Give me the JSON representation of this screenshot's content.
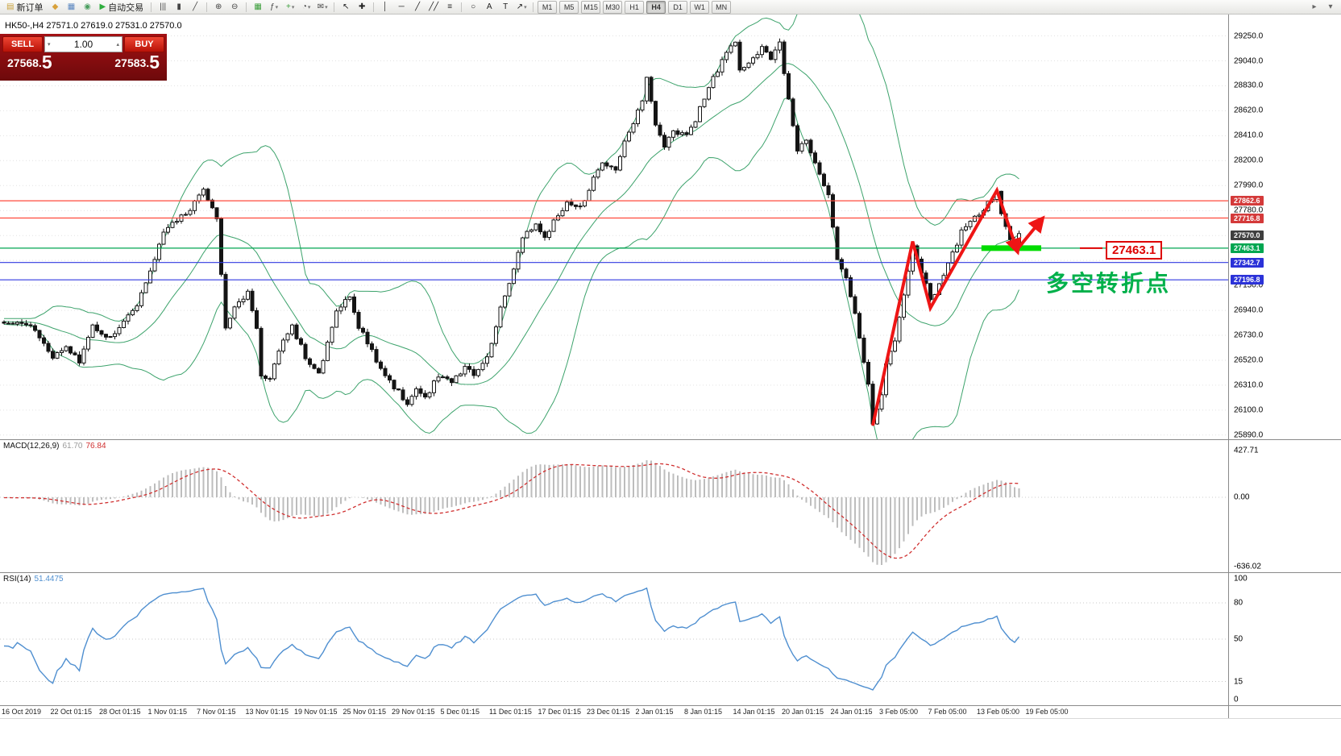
{
  "toolbar": {
    "timeframes": [
      "M1",
      "M5",
      "M15",
      "M30",
      "H1",
      "H4",
      "D1",
      "W1",
      "MN"
    ],
    "active_timeframe": "H4",
    "items": [
      {
        "k": "btn",
        "name": "new-order-button",
        "glyph": "▤",
        "gc": "#caa23a",
        "label": "新订单"
      },
      {
        "k": "icon",
        "name": "open-data-icon",
        "glyph": "◆",
        "gc": "#d8a13a"
      },
      {
        "k": "icon",
        "name": "charts-list-icon",
        "glyph": "▦",
        "gc": "#5a86c0"
      },
      {
        "k": "icon",
        "name": "help-icon",
        "glyph": "◉",
        "gc": "#4a9e5f"
      },
      {
        "k": "btn",
        "name": "autotrading-button",
        "glyph": "▶",
        "gc": "#2fae3e",
        "label": "自动交易"
      },
      {
        "k": "sep"
      },
      {
        "k": "icon",
        "name": "bar-chart-icon",
        "glyph": "|||",
        "gc": "#444"
      },
      {
        "k": "icon",
        "name": "candlestick-chart-icon",
        "glyph": "▮",
        "gc": "#444"
      },
      {
        "k": "icon",
        "name": "line-chart-icon",
        "glyph": "╱",
        "gc": "#444"
      },
      {
        "k": "sep"
      },
      {
        "k": "icon",
        "name": "zoom-in-icon",
        "glyph": "⊕",
        "gc": "#444"
      },
      {
        "k": "icon",
        "name": "zoom-out-icon",
        "glyph": "⊖",
        "gc": "#444"
      },
      {
        "k": "sep"
      },
      {
        "k": "icon",
        "name": "tile-windows-icon",
        "glyph": "▦",
        "gc": "#3a9e3a"
      },
      {
        "k": "dd",
        "name": "indicators-menu",
        "glyph": "ƒ",
        "gc": "#444"
      },
      {
        "k": "dd",
        "name": "add-object-menu",
        "glyph": "+",
        "gc": "#3a9e3a"
      },
      {
        "k": "dd",
        "name": "period-menu",
        "glyph": "◔",
        "gc": "#444"
      },
      {
        "k": "dd",
        "name": "template-menu",
        "glyph": "✉",
        "gc": "#444"
      },
      {
        "k": "sep"
      },
      {
        "k": "icon",
        "name": "cursor-icon",
        "glyph": "↖",
        "gc": "#222"
      },
      {
        "k": "icon",
        "name": "crosshair-icon",
        "glyph": "✚",
        "gc": "#222"
      },
      {
        "k": "sep"
      },
      {
        "k": "icon",
        "name": "vertical-line-icon",
        "glyph": "│",
        "gc": "#222"
      },
      {
        "k": "icon",
        "name": "horizontal-line-icon",
        "glyph": "─",
        "gc": "#222"
      },
      {
        "k": "icon",
        "name": "trendline-icon",
        "glyph": "╱",
        "gc": "#222"
      },
      {
        "k": "icon",
        "name": "channel-icon",
        "glyph": "╱╱",
        "gc": "#222"
      },
      {
        "k": "icon",
        "name": "fibonacci-icon",
        "glyph": "≡",
        "gc": "#222"
      },
      {
        "k": "sep"
      },
      {
        "k": "icon",
        "name": "shapes-icon",
        "glyph": "○",
        "gc": "#222"
      },
      {
        "k": "icon",
        "name": "text-icon",
        "glyph": "A",
        "gc": "#222"
      },
      {
        "k": "icon",
        "name": "label-icon",
        "glyph": "T",
        "gc": "#222"
      },
      {
        "k": "dd",
        "name": "arrows-menu",
        "glyph": "↗",
        "gc": "#222"
      },
      {
        "k": "sep"
      },
      {
        "k": "tf"
      },
      {
        "k": "flex"
      },
      {
        "k": "icon",
        "name": "dock-icon",
        "glyph": "▸",
        "gc": "#666"
      },
      {
        "k": "icon",
        "name": "panel-icon",
        "glyph": "▾",
        "gc": "#666"
      }
    ]
  },
  "quote_panel": {
    "sell_label": "SELL",
    "buy_label": "BUY",
    "volume": "1.00",
    "spinner_down": "▾",
    "spinner_up": "▴",
    "sell_price_main": "27568.",
    "sell_price_big": "5",
    "buy_price_main": "27583.",
    "buy_price_big": "5"
  },
  "chart_header": {
    "title": "HK50-,H4 27571.0 27619.0 27531.0 27570.0"
  },
  "annotations": {
    "price_label": "27463.1",
    "turning_point_text": "多空转折点",
    "arrow_color": "#ee1515",
    "highlight_color": "#00dc00",
    "box_color": "#dd0000",
    "text_color": "#00b04a"
  },
  "price_axis": {
    "labels": [
      {
        "text": "29250.0",
        "price": 29250
      },
      {
        "text": "29040.0",
        "price": 29040
      },
      {
        "text": "28830.0",
        "price": 28830
      },
      {
        "text": "28620.0",
        "price": 28620
      },
      {
        "text": "28410.0",
        "price": 28410
      },
      {
        "text": "28200.0",
        "price": 28200
      },
      {
        "text": "27990.0",
        "price": 27990
      },
      {
        "text": "27780.0",
        "price": 27780
      },
      {
        "text": "27150.0",
        "price": 27150
      },
      {
        "text": "26940.0",
        "price": 26940
      },
      {
        "text": "26730.0",
        "price": 26730
      },
      {
        "text": "26520.0",
        "price": 26520
      },
      {
        "text": "26310.0",
        "price": 26310
      },
      {
        "text": "26100.0",
        "price": 26100
      },
      {
        "text": "25890.0",
        "price": 25890
      }
    ],
    "badges": [
      {
        "text": "27862.6",
        "price": 27862.6,
        "bg": "#d43a3a"
      },
      {
        "text": "27716.8",
        "price": 27716.8,
        "bg": "#d43a3a"
      },
      {
        "text": "27570.0",
        "price": 27570.0,
        "bg": "#3f3f3f"
      },
      {
        "text": "27463.1",
        "price": 27463.1,
        "bg": "#00a651"
      },
      {
        "text": "27342.7",
        "price": 27342.7,
        "bg": "#2b32d8"
      },
      {
        "text": "27196.8",
        "price": 27196.8,
        "bg": "#2b32d8"
      }
    ]
  },
  "macd": {
    "name": "MACD(12,26,9)",
    "main_value": "61.70",
    "signal_value": "76.84",
    "axis": [
      {
        "text": "427.71",
        "value": 427.71
      },
      {
        "text": "0.00",
        "value": 0
      },
      {
        "text": "-636.02",
        "value": -636.02
      }
    ]
  },
  "rsi": {
    "name": "RSI(14)",
    "value": "51.4475",
    "levels": [
      80,
      50,
      15
    ],
    "axis": [
      {
        "text": "100",
        "value": 100
      },
      {
        "text": "80",
        "value": 80
      },
      {
        "text": "50",
        "value": 50
      },
      {
        "text": "15",
        "value": 15
      },
      {
        "text": "0",
        "value": 0
      }
    ]
  },
  "time_axis": [
    "16 Oct 2019",
    "22 Oct 01:15",
    "28 Oct 01:15",
    "1 Nov 01:15",
    "7 Nov 01:15",
    "13 Nov 01:15",
    "19 Nov 01:15",
    "25 Nov 01:15",
    "29 Nov 01:15",
    "5 Dec 01:15",
    "11 Dec 01:15",
    "17 Dec 01:15",
    "23 Dec 01:15",
    "2 Jan 01:15",
    "8 Jan 01:15",
    "14 Jan 01:15",
    "20 Jan 01:15",
    "24 Jan 01:15",
    "3 Feb 05:00",
    "7 Feb 05:00",
    "13 Feb 05:00",
    "19 Feb 05:00"
  ],
  "chart_data": {
    "type": "candlestick",
    "symbol": "HK50-",
    "timeframe": "H4",
    "ohlc_display": {
      "open": 27571.0,
      "high": 27619.0,
      "low": 27531.0,
      "close": 27570.0
    },
    "n_candles": 230,
    "ylim": [
      25855,
      29430
    ],
    "grid_min": 25890,
    "grid_max": 29250,
    "grid_step": 210,
    "band_color": "#3da36c",
    "bollinger": {
      "period": 20,
      "deviation": 2
    },
    "macd_params": {
      "fast": 12,
      "slow": 26,
      "signal": 9
    },
    "rsi_params": {
      "period": 14
    },
    "current_price": 27570.0,
    "hlines": [
      {
        "price": 27862.6,
        "color": "#ff4a3c"
      },
      {
        "price": 27716.8,
        "color": "#ff4a3c"
      },
      {
        "price": 27463.1,
        "color": "#00a651"
      },
      {
        "price": 27342.7,
        "color": "#3038e0"
      },
      {
        "price": 27196.8,
        "color": "#3038e0"
      }
    ],
    "highlight_segment": {
      "price": 27463.1,
      "from": 220.5,
      "to": 234
    },
    "arrow_path": [
      [
        196,
        25970
      ],
      [
        205,
        27520
      ],
      [
        209,
        26960
      ],
      [
        224,
        27950
      ],
      [
        228.5,
        27450
      ]
    ],
    "arrow2": [
      [
        228.5,
        27450
      ],
      [
        234,
        27700
      ]
    ],
    "price_anchors": [
      [
        0,
        26850
      ],
      [
        7,
        26780
      ],
      [
        11,
        26550
      ],
      [
        14,
        26650
      ],
      [
        17,
        26500
      ],
      [
        20,
        26800
      ],
      [
        23,
        26700
      ],
      [
        26,
        26800
      ],
      [
        30,
        27000
      ],
      [
        34,
        27350
      ],
      [
        36,
        27600
      ],
      [
        39,
        27700
      ],
      [
        42,
        27800
      ],
      [
        45,
        27950
      ],
      [
        48,
        27700
      ],
      [
        50,
        26780
      ],
      [
        52,
        26950
      ],
      [
        55,
        27100
      ],
      [
        57,
        26800
      ],
      [
        58,
        26400
      ],
      [
        60,
        26350
      ],
      [
        63,
        26700
      ],
      [
        65,
        26800
      ],
      [
        68,
        26550
      ],
      [
        71,
        26400
      ],
      [
        73,
        26650
      ],
      [
        75,
        26950
      ],
      [
        78,
        27050
      ],
      [
        80,
        26800
      ],
      [
        83,
        26600
      ],
      [
        85,
        26450
      ],
      [
        88,
        26300
      ],
      [
        91,
        26150
      ],
      [
        93,
        26300
      ],
      [
        95,
        26200
      ],
      [
        98,
        26400
      ],
      [
        101,
        26350
      ],
      [
        104,
        26450
      ],
      [
        106,
        26400
      ],
      [
        109,
        26550
      ],
      [
        112,
        26950
      ],
      [
        115,
        27300
      ],
      [
        117,
        27550
      ],
      [
        120,
        27650
      ],
      [
        122,
        27550
      ],
      [
        125,
        27750
      ],
      [
        127,
        27850
      ],
      [
        130,
        27800
      ],
      [
        133,
        28050
      ],
      [
        135,
        28200
      ],
      [
        138,
        28100
      ],
      [
        140,
        28350
      ],
      [
        144,
        28700
      ],
      [
        145,
        28900
      ],
      [
        147,
        28500
      ],
      [
        149,
        28300
      ],
      [
        151,
        28450
      ],
      [
        154,
        28400
      ],
      [
        156,
        28550
      ],
      [
        157,
        28650
      ],
      [
        160,
        28900
      ],
      [
        163,
        29100
      ],
      [
        165,
        29200
      ],
      [
        166,
        28950
      ],
      [
        169,
        29050
      ],
      [
        171,
        29150
      ],
      [
        173,
        29050
      ],
      [
        175,
        29180
      ],
      [
        177,
        28700
      ],
      [
        179,
        28300
      ],
      [
        181,
        28350
      ],
      [
        183,
        28200
      ],
      [
        185,
        28000
      ],
      [
        186,
        27900
      ],
      [
        188,
        27350
      ],
      [
        190,
        27200
      ],
      [
        192,
        26900
      ],
      [
        194,
        26500
      ],
      [
        195,
        26300
      ],
      [
        196,
        25980
      ],
      [
        198,
        26250
      ],
      [
        199,
        26500
      ],
      [
        201,
        26700
      ],
      [
        202,
        26900
      ],
      [
        204,
        27250
      ],
      [
        205,
        27500
      ],
      [
        206,
        27350
      ],
      [
        208,
        27150
      ],
      [
        209,
        27020
      ],
      [
        211,
        27150
      ],
      [
        213,
        27350
      ],
      [
        215,
        27500
      ],
      [
        216,
        27600
      ],
      [
        218,
        27700
      ],
      [
        220,
        27750
      ],
      [
        222,
        27850
      ],
      [
        224,
        27930
      ],
      [
        225,
        27750
      ],
      [
        227,
        27550
      ],
      [
        228,
        27480
      ],
      [
        229,
        27570
      ]
    ]
  }
}
